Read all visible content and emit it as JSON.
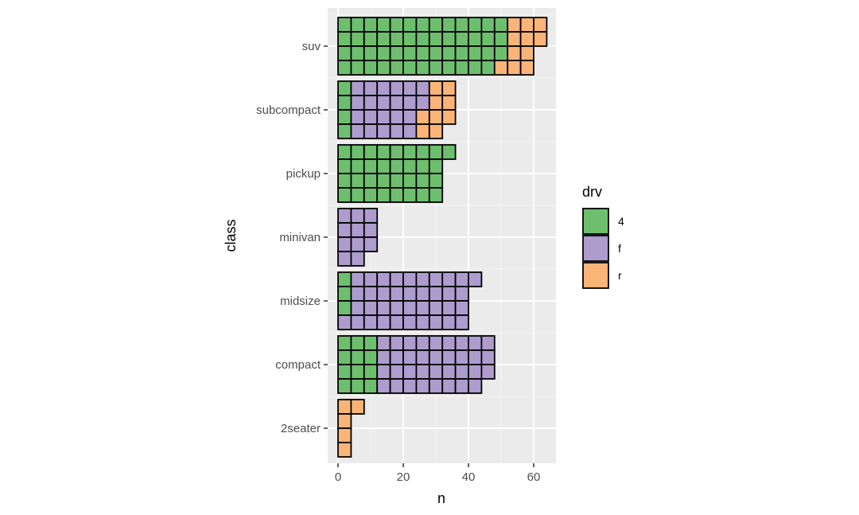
{
  "chart_data": {
    "type": "waffle-bar",
    "title": "",
    "xlabel": "n",
    "ylabel": "class",
    "x_ticks": [
      0,
      20,
      40,
      60
    ],
    "xlim": [
      -3,
      67
    ],
    "unit_per_cell": 4,
    "cells_per_column": 4,
    "categories": [
      "2seater",
      "compact",
      "midsize",
      "minivan",
      "pickup",
      "subcompact",
      "suv"
    ],
    "series": [
      {
        "name": "4",
        "color": "#6dbf6d",
        "values": [
          0,
          12,
          3,
          0,
          33,
          4,
          51
        ]
      },
      {
        "name": "f",
        "color": "#ad9ccd",
        "values": [
          0,
          35,
          38,
          11,
          0,
          22,
          0
        ]
      },
      {
        "name": "r",
        "color": "#fbb477",
        "values": [
          5,
          0,
          0,
          0,
          0,
          9,
          11
        ]
      }
    ],
    "legend": {
      "title": "drv",
      "position": "right"
    },
    "colors": {
      "panel": "#ebebeb",
      "grid_major": "#ffffff",
      "grid_minor": "#f4f4f4",
      "cell_stroke": "#000000",
      "tick_text": "#4d4d4d",
      "tick_mark": "#333333"
    }
  }
}
